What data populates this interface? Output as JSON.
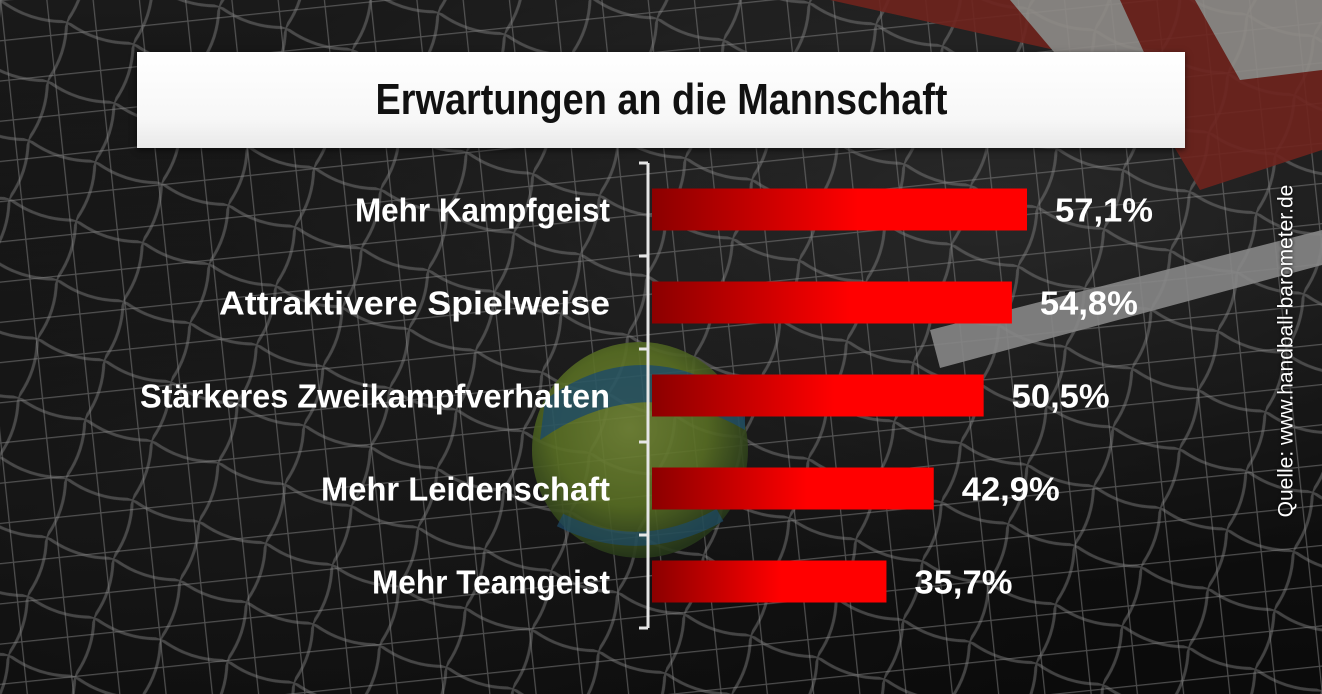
{
  "title": "Erwartungen an die Mannschaft",
  "source": "Quelle: www.handball-barometer.de",
  "colors": {
    "bar": "#ff0000",
    "bar_dark": "#8b0000",
    "text": "#ffffff",
    "title_text": "#111111"
  },
  "chart_data": {
    "type": "bar",
    "orientation": "horizontal",
    "title": "Erwartungen an die Mannschaft",
    "categories": [
      "Mehr Kampfgeist",
      "Attraktivere Spielweise",
      "Stärkeres Zweikampfverhalten",
      "Mehr Leidenschaft",
      "Mehr Teamgeist"
    ],
    "values": [
      57.1,
      54.8,
      50.5,
      42.9,
      35.7
    ],
    "value_labels": [
      "57,1%",
      "54,8%",
      "50,5%",
      "42,9%",
      "35,7%"
    ],
    "unit": "%",
    "xlim": [
      0,
      60
    ],
    "grid": false,
    "legend": "none"
  }
}
